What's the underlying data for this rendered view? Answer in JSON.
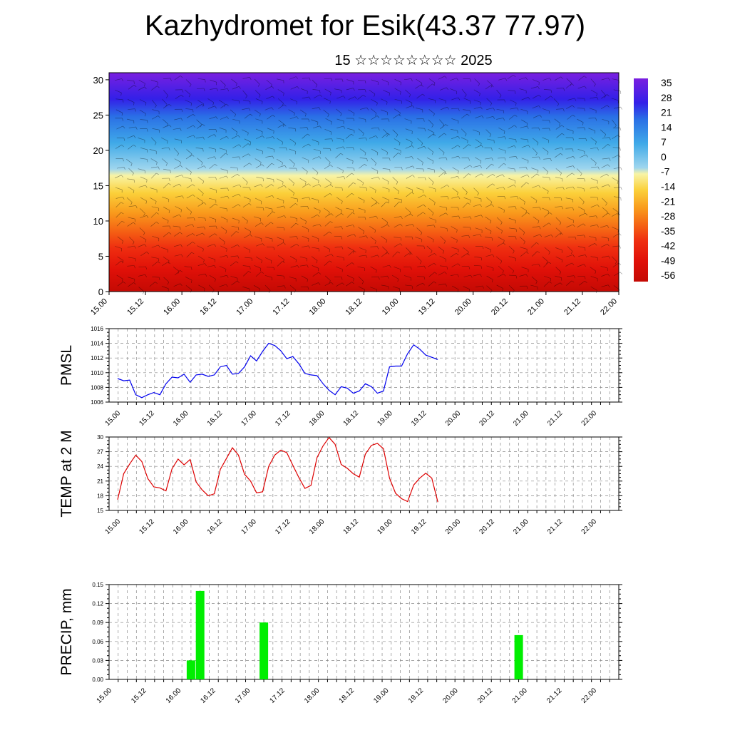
{
  "page": {
    "title": "Kazhydromet for Esik(43.37 77.97)",
    "subtitle": "15 ☆☆☆☆☆☆☆☆ 2025"
  },
  "chart_data": [
    {
      "type": "heatmap",
      "name": "cross-section",
      "ylim": [
        0,
        31
      ],
      "yticks": [
        0,
        5,
        10,
        15,
        20,
        25,
        30
      ],
      "xticks": [
        "15.00",
        "15.12",
        "16.00",
        "16.12",
        "17.00",
        "17.12",
        "18.00",
        "18.12",
        "19.00",
        "19.12",
        "20.00",
        "20.12",
        "21.00",
        "21.12",
        "22.00"
      ],
      "colorbar_labels": [
        "35",
        "28",
        "21",
        "14",
        "7",
        "0",
        "-7",
        "-14",
        "-21",
        "-28",
        "-35",
        "-42",
        "-49",
        "-56"
      ],
      "colormap": [
        "#7a1fe0",
        "#3320e8",
        "#2a6fe6",
        "#3fa9e8",
        "#9fd6ee",
        "#f8f4a6",
        "#fbd03a",
        "#f99a1c",
        "#f56414",
        "#ef2e10",
        "#e01008",
        "#c40a04"
      ],
      "grid": true,
      "overlay": "wind barbs"
    },
    {
      "type": "line",
      "name": "pmsl",
      "ylabel": "PMSL",
      "ylim": [
        1006,
        1016
      ],
      "yticks": [
        1006,
        1008,
        1010,
        1012,
        1014,
        1016
      ],
      "xticks": [
        "15.00",
        "15.12",
        "16.00",
        "16.12",
        "17.00",
        "17.12",
        "18.00",
        "18.12",
        "19.00",
        "19.12",
        "20.00",
        "20.12",
        "21.00",
        "21.12",
        "22.00"
      ],
      "color": "#0000ee",
      "grid": true,
      "x": [
        0,
        3,
        6,
        9,
        12,
        15,
        18,
        21,
        24,
        27,
        30,
        33,
        36,
        39,
        42,
        45,
        48,
        51,
        54,
        57,
        60,
        63,
        66,
        69,
        72,
        75,
        78,
        81,
        84,
        87,
        90,
        93,
        96,
        99,
        102,
        105,
        108,
        111,
        114,
        117,
        120,
        123,
        126,
        129,
        132,
        135,
        138,
        141,
        144,
        147,
        150,
        153,
        156,
        159
      ],
      "values": [
        1009.2,
        1008.9,
        1009.0,
        1007.0,
        1006.6,
        1007.0,
        1007.3,
        1007.0,
        1008.5,
        1009.4,
        1009.3,
        1009.8,
        1008.7,
        1009.7,
        1009.8,
        1009.5,
        1009.7,
        1010.8,
        1011.0,
        1009.8,
        1009.9,
        1010.8,
        1012.3,
        1011.6,
        1012.9,
        1014.0,
        1013.7,
        1013.0,
        1011.9,
        1012.2,
        1011.2,
        1009.9,
        1009.7,
        1009.6,
        1008.5,
        1007.6,
        1007.0,
        1008.1,
        1007.9,
        1007.2,
        1007.5,
        1008.5,
        1008.1,
        1007.2,
        1007.5,
        1010.8,
        1010.9,
        1010.9,
        1012.6,
        1013.8,
        1013.2,
        1012.4,
        1012.1,
        1011.8
      ]
    },
    {
      "type": "line",
      "name": "temp",
      "ylabel": "TEMP at 2 M",
      "ylim": [
        15,
        30
      ],
      "yticks": [
        15,
        18,
        21,
        24,
        27,
        30
      ],
      "xticks": [
        "15.00",
        "15.12",
        "16.00",
        "16.12",
        "17.00",
        "17.12",
        "18.00",
        "18.12",
        "19.00",
        "19.12",
        "20.00",
        "20.12",
        "21.00",
        "21.12",
        "22.00"
      ],
      "color": "#dd0000",
      "grid": true,
      "x": [
        0,
        3,
        6,
        9,
        12,
        15,
        18,
        21,
        24,
        27,
        30,
        33,
        36,
        39,
        42,
        45,
        48,
        51,
        54,
        57,
        60,
        63,
        66,
        69,
        72,
        75,
        78,
        81,
        84,
        87,
        90,
        93,
        96,
        99,
        102,
        105,
        108,
        111,
        114,
        117,
        120,
        123,
        126,
        129,
        132,
        135,
        138,
        141,
        144,
        147,
        150,
        153,
        156,
        159
      ],
      "values": [
        17.2,
        22.5,
        24.5,
        26.3,
        25.0,
        21.5,
        19.8,
        19.6,
        19.0,
        23.5,
        25.5,
        24.3,
        25.4,
        20.8,
        19.2,
        18.0,
        18.4,
        23.4,
        25.6,
        27.8,
        26.3,
        22.4,
        21.0,
        18.6,
        18.8,
        24.0,
        26.3,
        27.3,
        26.8,
        24.2,
        21.7,
        19.5,
        20.1,
        25.8,
        28.2,
        29.9,
        28.5,
        24.4,
        23.6,
        22.5,
        21.8,
        26.5,
        28.3,
        28.7,
        27.6,
        21.6,
        18.5,
        17.4,
        16.8,
        20.2,
        21.6,
        22.6,
        21.6,
        16.7
      ]
    },
    {
      "type": "bar",
      "name": "precip",
      "ylabel": "PRECIP, mm",
      "ylim": [
        0,
        0.15
      ],
      "yticks": [
        "0.00",
        "0.03",
        "0.06",
        "0.09",
        "0.12",
        "0.15"
      ],
      "xticks": [
        "15.00",
        "15.12",
        "16.00",
        "16.12",
        "17.00",
        "17.12",
        "18.00",
        "18.12",
        "19.00",
        "19.12",
        "20.00",
        "20.12",
        "21.00",
        "21.12",
        "22.00"
      ],
      "color": "#00ee00",
      "grid": true,
      "bars": [
        {
          "x": "16.03",
          "value": 0.03
        },
        {
          "x": "16.06",
          "value": 0.14
        },
        {
          "x": "17.03",
          "value": 0.09
        },
        {
          "x": "20.15",
          "value": 0.07
        }
      ]
    }
  ]
}
